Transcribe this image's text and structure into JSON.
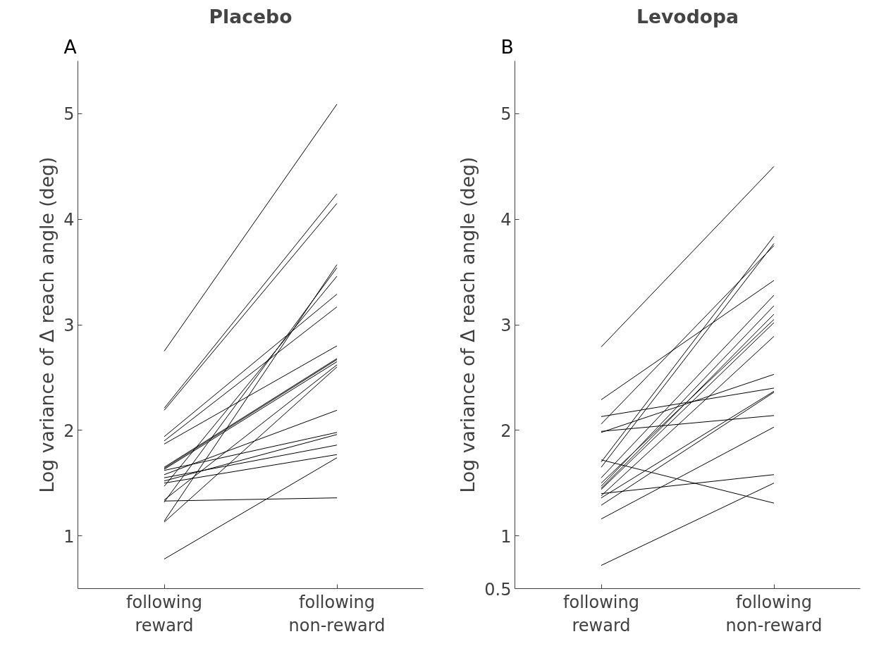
{
  "chart_data": [
    {
      "type": "line",
      "title": "Placebo",
      "ylabel": "Log variance of Δ reach angle (deg)",
      "annotations": [
        "A"
      ],
      "categories": [
        "following\nreward",
        "following\nnon-reward"
      ],
      "ylim": [
        0.5,
        5.5
      ],
      "yticks": [
        1,
        2,
        3,
        4,
        5
      ],
      "series": [
        {
          "color": "#000000",
          "values": [
            2.75,
            5.09
          ]
        },
        {
          "color": "#000000",
          "values": [
            2.21,
            4.24
          ]
        },
        {
          "color": "#000000",
          "values": [
            2.19,
            4.15
          ]
        },
        {
          "color": "#000000",
          "values": [
            1.94,
            3.29
          ]
        },
        {
          "color": "#000000",
          "values": [
            1.9,
            3.17
          ]
        },
        {
          "color": "#000000",
          "values": [
            1.87,
            2.8
          ]
        },
        {
          "color": "#000000",
          "values": [
            1.65,
            2.68
          ]
        },
        {
          "color": "#000000",
          "values": [
            1.64,
            2.67
          ]
        },
        {
          "color": "#000000",
          "values": [
            1.63,
            2.65
          ]
        },
        {
          "color": "#000000",
          "values": [
            1.62,
            1.98
          ]
        },
        {
          "color": "#000000",
          "values": [
            1.58,
            2.19
          ]
        },
        {
          "color": "#000000",
          "values": [
            1.55,
            1.86
          ]
        },
        {
          "color": "#000000",
          "values": [
            1.52,
            1.96
          ]
        },
        {
          "color": "#000000",
          "values": [
            1.5,
            1.77
          ]
        },
        {
          "color": "#000000",
          "values": [
            1.47,
            3.46
          ]
        },
        {
          "color": "#000000",
          "values": [
            1.34,
            2.62
          ]
        },
        {
          "color": "#000000",
          "values": [
            1.33,
            1.36
          ]
        },
        {
          "color": "#000000",
          "values": [
            1.32,
            3.54
          ]
        },
        {
          "color": "#000000",
          "values": [
            1.14,
            3.57
          ]
        },
        {
          "color": "#000000",
          "values": [
            1.13,
            2.6
          ]
        },
        {
          "color": "#000000",
          "values": [
            0.78,
            1.74
          ]
        }
      ]
    },
    {
      "type": "line",
      "title": "Levodopa",
      "ylabel": "Log variance of Δ reach angle (deg)",
      "annotations": [
        "B"
      ],
      "categories": [
        "following\nreward",
        "following\nnon-reward"
      ],
      "ylim": [
        0.5,
        5.5
      ],
      "yticks": [
        0.5,
        1,
        2,
        3,
        4,
        5
      ],
      "series": [
        {
          "color": "#000000",
          "values": [
            2.79,
            4.5
          ]
        },
        {
          "color": "#000000",
          "values": [
            2.29,
            3.42
          ]
        },
        {
          "color": "#000000",
          "values": [
            2.13,
            2.4
          ]
        },
        {
          "color": "#000000",
          "values": [
            2.06,
            3.75
          ]
        },
        {
          "color": "#000000",
          "values": [
            1.99,
            2.14
          ]
        },
        {
          "color": "#000000",
          "values": [
            1.98,
            2.53
          ]
        },
        {
          "color": "#000000",
          "values": [
            1.72,
            1.31
          ]
        },
        {
          "color": "#000000",
          "values": [
            1.7,
            3.84
          ]
        },
        {
          "color": "#000000",
          "values": [
            1.65,
            3.77
          ]
        },
        {
          "color": "#000000",
          "values": [
            1.55,
            3.28
          ]
        },
        {
          "color": "#000000",
          "values": [
            1.5,
            3.05
          ]
        },
        {
          "color": "#000000",
          "values": [
            1.47,
            3.18
          ]
        },
        {
          "color": "#000000",
          "values": [
            1.45,
            3.1
          ]
        },
        {
          "color": "#000000",
          "values": [
            1.44,
            3.02
          ]
        },
        {
          "color": "#000000",
          "values": [
            1.4,
            1.58
          ]
        },
        {
          "color": "#000000",
          "values": [
            1.38,
            2.89
          ]
        },
        {
          "color": "#000000",
          "values": [
            1.36,
            2.37
          ]
        },
        {
          "color": "#000000",
          "values": [
            1.29,
            2.36
          ]
        },
        {
          "color": "#000000",
          "values": [
            1.16,
            2.03
          ]
        },
        {
          "color": "#000000",
          "values": [
            0.72,
            1.5
          ]
        }
      ]
    }
  ]
}
